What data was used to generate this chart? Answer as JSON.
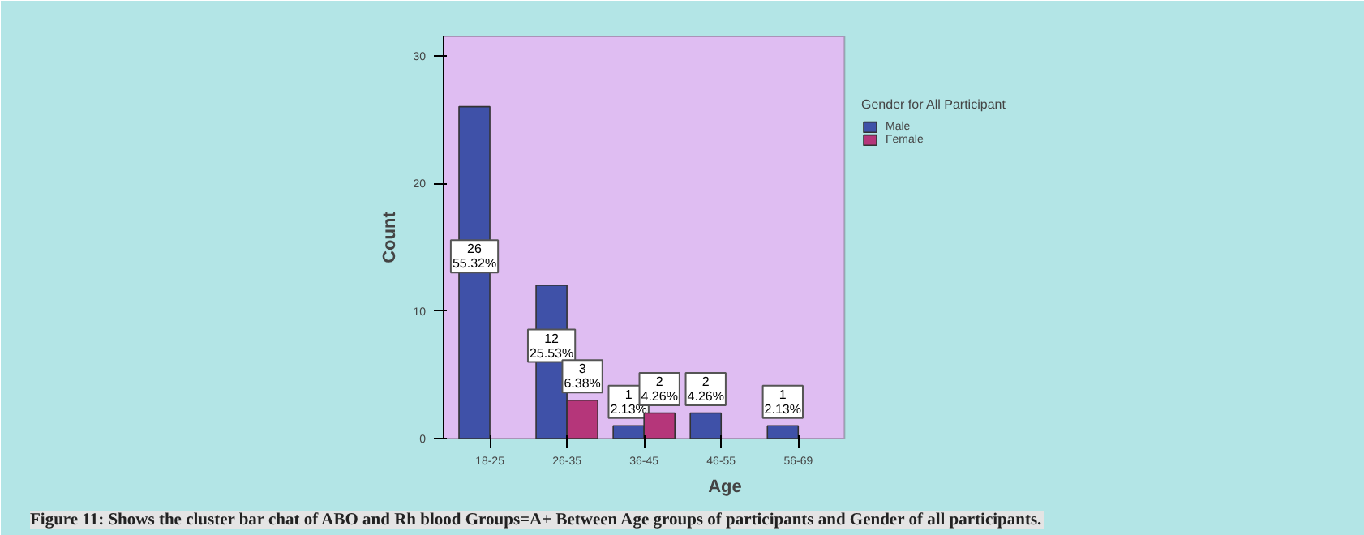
{
  "chart_data": {
    "type": "bar",
    "xlabel": "Age",
    "ylabel": "Count",
    "legend_title": "Gender for All Participant",
    "categories": [
      "18-25",
      "26-35",
      "36-45",
      "46-55",
      "56-69"
    ],
    "series": [
      {
        "name": "Male",
        "color": "#3f51a8",
        "values": [
          26,
          12,
          1,
          2,
          1
        ],
        "value_labels": [
          "26\n55.32%",
          "12\n25.53%",
          "1\n2.13%",
          "2\n4.26%",
          "1\n2.13%"
        ]
      },
      {
        "name": "Female",
        "color": "#b5367a",
        "values": [
          null,
          3,
          2,
          null,
          null
        ],
        "value_labels": [
          null,
          "3\n6.38%",
          "2\n4.26%",
          null,
          null
        ]
      }
    ],
    "ylim": [
      0,
      31.5
    ],
    "yticks": [
      0,
      10,
      20,
      30
    ],
    "grid": false,
    "legend": "top right",
    "annotations": [
      "Figure 11: Shows the cluster bar chat of ABO and Rh blood Groups=A+ Between Age groups of participants and Gender of all participants."
    ]
  }
}
